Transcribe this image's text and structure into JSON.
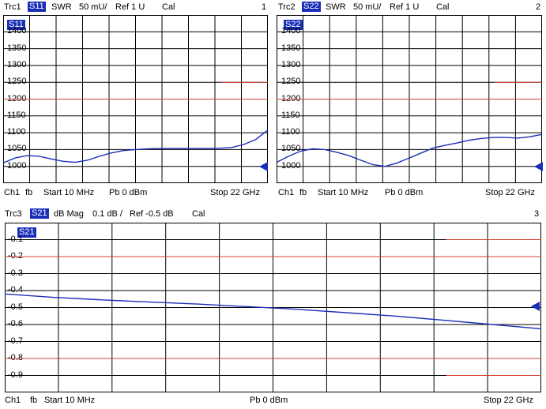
{
  "panels": {
    "top_left": {
      "trc": "Trc1",
      "param": "S11",
      "format": "SWR",
      "scale": "50 mU/",
      "ref": "Ref 1 U",
      "cal": "Cal",
      "num": "1",
      "tag": "S11",
      "yticks": [
        "1400",
        "1350",
        "1300",
        "1250",
        "1200",
        "1150",
        "1100",
        "1050",
        "1000"
      ],
      "footer": {
        "ch": "Ch1",
        "fb": "fb",
        "start": "Start  10 MHz",
        "pb": "Pb   0 dBm",
        "stop": "Stop  22 GHz"
      }
    },
    "top_right": {
      "trc": "Trc2",
      "param": "S22",
      "format": "SWR",
      "scale": "50 mU/",
      "ref": "Ref 1 U",
      "cal": "Cal",
      "num": "2",
      "tag": "S22",
      "yticks": [
        "1400",
        "1350",
        "1300",
        "1250",
        "1200",
        "1150",
        "1100",
        "1050",
        "1000"
      ],
      "footer": {
        "ch": "Ch1",
        "fb": "fb",
        "start": "Start  10 MHz",
        "pb": "Pb   0 dBm",
        "stop": "Stop  22 GHz"
      }
    },
    "bottom": {
      "trc": "Trc3",
      "param": "S21",
      "format": "dB Mag",
      "scale": "0.1 dB /",
      "ref": "Ref -0.5 dB",
      "cal": "Cal",
      "num": "3",
      "tag": "S21",
      "yticks": [
        "-0.1",
        "-0.2",
        "-0.3",
        "-0.4",
        "-0.5",
        "-0.6",
        "-0.7",
        "-0.8",
        "-0.9"
      ],
      "footer": {
        "ch": "Ch1",
        "fb": "fb",
        "start": "Start  10 MHz",
        "pb": "Pb   0 dBm",
        "stop": "Stop  22 GHz"
      }
    }
  },
  "colors": {
    "trace": "#1a2fb8",
    "limit": "#d04030",
    "grid": "#000000"
  },
  "chart_data": [
    {
      "type": "line",
      "name": "S11",
      "x": [
        0.01,
        1,
        2,
        3,
        4,
        5,
        6,
        7,
        8,
        9,
        10,
        11,
        12,
        13,
        14,
        15,
        16,
        17,
        18,
        19,
        20,
        21,
        22
      ],
      "y": [
        1.01,
        1.025,
        1.032,
        1.03,
        1.022,
        1.015,
        1.012,
        1.018,
        1.03,
        1.04,
        1.047,
        1.05,
        1.052,
        1.053,
        1.053,
        1.053,
        1.053,
        1.053,
        1.054,
        1.056,
        1.065,
        1.08,
        1.108
      ],
      "ylim": [
        0.95,
        1.45
      ],
      "limit_lines": [
        {
          "value": 1.2,
          "from": 0.01,
          "to": 22
        },
        {
          "value": 1.25,
          "from": 18.1,
          "to": 22
        }
      ]
    },
    {
      "type": "line",
      "name": "S22",
      "x": [
        0.01,
        1,
        2,
        3,
        4,
        5,
        6,
        7,
        8,
        9,
        10,
        11,
        12,
        13,
        14,
        15,
        16,
        17,
        18,
        19,
        20,
        21,
        22
      ],
      "y": [
        1.012,
        1.03,
        1.045,
        1.052,
        1.05,
        1.042,
        1.032,
        1.018,
        1.005,
        1.0,
        1.01,
        1.025,
        1.04,
        1.055,
        1.063,
        1.07,
        1.078,
        1.083,
        1.086,
        1.086,
        1.084,
        1.088,
        1.095
      ],
      "ylim": [
        0.95,
        1.45
      ],
      "limit_lines": [
        {
          "value": 1.2,
          "from": 0.01,
          "to": 22
        },
        {
          "value": 1.25,
          "from": 18.1,
          "to": 22
        }
      ]
    },
    {
      "type": "line",
      "name": "S21",
      "x": [
        0.01,
        2,
        4,
        6,
        8,
        10,
        12,
        14,
        16,
        18,
        20,
        22
      ],
      "y": [
        -0.42,
        -0.44,
        -0.455,
        -0.468,
        -0.48,
        -0.495,
        -0.51,
        -0.53,
        -0.55,
        -0.575,
        -0.6,
        -0.625
      ],
      "ylim": [
        -1.0,
        0.0
      ],
      "limit_lines": [
        {
          "value": -0.2,
          "from": 0.01,
          "to": 22
        },
        {
          "value": -0.8,
          "from": 0.01,
          "to": 22
        },
        {
          "value": -0.1,
          "from": 18.1,
          "to": 22
        },
        {
          "value": -0.9,
          "from": 18.1,
          "to": 22
        }
      ]
    }
  ]
}
